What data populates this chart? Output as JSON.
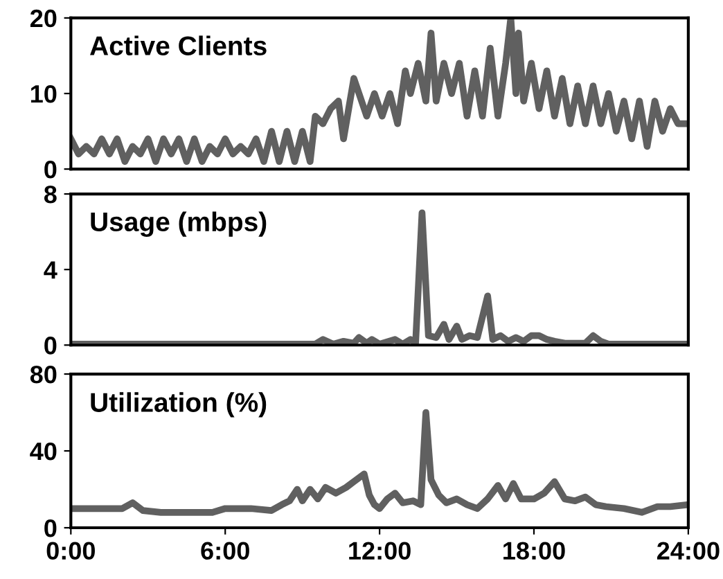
{
  "chart_data": [
    {
      "type": "line",
      "title": "Active Clients",
      "xlim": [
        0,
        24
      ],
      "ylim": [
        0,
        20
      ],
      "yticks": [
        0,
        10,
        20
      ],
      "tick_labels": "y",
      "grid": false,
      "marker": "none",
      "line_style": "solid",
      "series": [
        {
          "color": "#606060",
          "x": [
            0,
            0.3,
            0.6,
            0.9,
            1.2,
            1.5,
            1.8,
            2.1,
            2.4,
            2.7,
            3.0,
            3.3,
            3.6,
            3.9,
            4.2,
            4.5,
            4.8,
            5.1,
            5.4,
            5.7,
            6.0,
            6.3,
            6.6,
            6.9,
            7.2,
            7.5,
            7.8,
            8.1,
            8.4,
            8.7,
            9.0,
            9.3,
            9.5,
            9.8,
            10.1,
            10.4,
            10.6,
            10.8,
            11.0,
            11.2,
            11.5,
            11.8,
            12.1,
            12.4,
            12.7,
            13.0,
            13.2,
            13.5,
            13.8,
            14.0,
            14.2,
            14.5,
            14.8,
            15.1,
            15.4,
            15.7,
            16.0,
            16.3,
            16.6,
            16.9,
            17.1,
            17.3,
            17.4,
            17.6,
            17.9,
            18.2,
            18.5,
            18.8,
            19.1,
            19.4,
            19.7,
            20.0,
            20.3,
            20.6,
            20.9,
            21.2,
            21.5,
            21.8,
            22.1,
            22.4,
            22.7,
            23.0,
            23.3,
            23.6,
            24
          ],
          "values": [
            4,
            2,
            3,
            2,
            4,
            2,
            4,
            1,
            3,
            2,
            4,
            1,
            4,
            2,
            4,
            1,
            4,
            1,
            3,
            2,
            4,
            2,
            3,
            2,
            4,
            1,
            5,
            1,
            5,
            1,
            5,
            1,
            7,
            6,
            8,
            9,
            4,
            8,
            12,
            10,
            7,
            10,
            7,
            10,
            6,
            13,
            10,
            14,
            9,
            18,
            9,
            14,
            10,
            14,
            7,
            13,
            7,
            16,
            7,
            14,
            20,
            10,
            18,
            9,
            14,
            8,
            13,
            7,
            12,
            6,
            11,
            6,
            11,
            6,
            10,
            5,
            9,
            4,
            9,
            3,
            9,
            5,
            8,
            6,
            6
          ]
        }
      ]
    },
    {
      "type": "line",
      "title": "Usage (mbps)",
      "xlim": [
        0,
        24
      ],
      "ylim": [
        0,
        8
      ],
      "yticks": [
        0,
        4,
        8
      ],
      "tick_labels": "y",
      "grid": false,
      "marker": "none",
      "line_style": "solid",
      "series": [
        {
          "color": "#606060",
          "x": [
            0,
            6,
            9.5,
            9.8,
            10.2,
            10.6,
            11,
            11.2,
            11.5,
            11.7,
            12,
            12.6,
            12.9,
            13.2,
            13.4,
            13.65,
            13.9,
            14.2,
            14.5,
            14.7,
            15.0,
            15.2,
            15.5,
            15.8,
            16.2,
            16.4,
            16.7,
            17,
            17.3,
            17.6,
            17.9,
            18.2,
            18.5,
            18.8,
            19.2,
            20.0,
            20.3,
            20.6,
            20.9,
            24
          ],
          "values": [
            0.05,
            0.05,
            0.05,
            0.3,
            0.05,
            0.2,
            0.1,
            0.4,
            0.1,
            0.3,
            0.05,
            0.3,
            0.05,
            0.3,
            0.1,
            7,
            0.5,
            0.4,
            1.1,
            0.3,
            1.0,
            0.3,
            0.5,
            0.4,
            2.6,
            0.3,
            0.5,
            0.2,
            0.4,
            0.2,
            0.5,
            0.5,
            0.3,
            0.2,
            0.1,
            0.1,
            0.5,
            0.2,
            0.05,
            0.05
          ]
        }
      ]
    },
    {
      "type": "line",
      "title": "Utilization (%)",
      "xlim": [
        0,
        24
      ],
      "xticks": [
        {
          "value": 0,
          "label": "0:00"
        },
        {
          "value": 6,
          "label": "6:00"
        },
        {
          "value": 12,
          "label": "12:00"
        },
        {
          "value": 18,
          "label": "18:00"
        },
        {
          "value": 24,
          "label": "24:00"
        }
      ],
      "ylim": [
        0,
        80
      ],
      "yticks": [
        0,
        40,
        80
      ],
      "grid": false,
      "marker": "none",
      "line_style": "solid",
      "series": [
        {
          "color": "#606060",
          "x": [
            0,
            1,
            2,
            2.4,
            2.8,
            3.5,
            4.5,
            5.5,
            6,
            7,
            7.8,
            8.2,
            8.5,
            8.8,
            9,
            9.3,
            9.6,
            9.9,
            10.3,
            10.7,
            11,
            11.4,
            11.6,
            11.8,
            12,
            12.3,
            12.6,
            12.9,
            13.3,
            13.6,
            13.8,
            14.0,
            14.3,
            14.6,
            15,
            15.4,
            15.8,
            16.2,
            16.6,
            16.9,
            17.2,
            17.5,
            18,
            18.4,
            18.8,
            19.2,
            19.6,
            20.0,
            20.4,
            20.8,
            21.5,
            22.2,
            22.8,
            23.3,
            24
          ],
          "values": [
            10,
            10,
            10,
            13,
            9,
            8,
            8,
            8,
            10,
            10,
            9,
            12,
            14,
            20,
            14,
            20,
            15,
            21,
            18,
            21,
            24,
            28,
            17,
            12,
            10,
            15,
            18,
            13,
            14,
            12,
            60,
            25,
            17,
            13,
            15,
            12,
            10,
            15,
            22,
            15,
            23,
            15,
            15,
            18,
            24,
            15,
            14,
            16,
            12,
            11,
            10,
            8,
            11,
            11,
            12
          ]
        }
      ]
    }
  ]
}
